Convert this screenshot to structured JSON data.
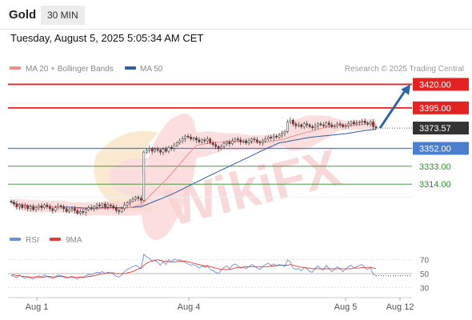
{
  "header": {
    "symbol": "Gold",
    "timeframe": "30 MIN",
    "datetime": "Tuesday, August 5, 2025 5:05:34 AM CET"
  },
  "legend": {
    "ma20": "MA 20 + Bollinger Bands",
    "ma50": "MA 50",
    "credit": "Research © 2025 Trading Central",
    "colors": {
      "ma20": "#f28b8b",
      "ma50": "#2e5f9e"
    }
  },
  "rsi_legend": {
    "rsi": "RSI",
    "ma9": "9MA",
    "colors": {
      "rsi": "#6d8fd6",
      "ma9": "#e53935"
    }
  },
  "watermark": {
    "text": "WikiFX",
    "icon": "wikifx-logo-icon"
  },
  "chart_data": {
    "type": "candlestick",
    "ylim": [
      3270,
      3428
    ],
    "x_labels": [
      "Aug 1",
      "Aug 4",
      "Aug 5",
      "Aug 12"
    ],
    "last_price": {
      "value": "3373.57",
      "color": "#333333"
    },
    "levels": [
      {
        "value": "3420.00",
        "num": 3420,
        "color": "#e32222",
        "style": "box"
      },
      {
        "value": "3395.00",
        "num": 3395,
        "color": "#e32222",
        "style": "box"
      },
      {
        "value": "3352.00",
        "num": 3352,
        "color": "#4a7fd0",
        "style": "box"
      },
      {
        "value": "3333.00",
        "num": 3333,
        "color": "#2e8b2e",
        "style": "text"
      },
      {
        "value": "3314.00",
        "num": 3314,
        "color": "#2e8b2e",
        "style": "text"
      }
    ],
    "forecast_arrow": {
      "from": 3373.57,
      "to": 3420,
      "color": "#2e64a8"
    },
    "closes": [
      3295,
      3293,
      3290,
      3292,
      3289,
      3291,
      3288,
      3290,
      3287,
      3289,
      3291,
      3289,
      3292,
      3290,
      3288,
      3286,
      3289,
      3291,
      3290,
      3288,
      3285,
      3287,
      3288,
      3286,
      3283,
      3285,
      3284,
      3287,
      3289,
      3288,
      3290,
      3292,
      3291,
      3293,
      3290,
      3292,
      3291,
      3289,
      3286,
      3285,
      3288,
      3292,
      3294,
      3296,
      3298,
      3300,
      3299,
      3297,
      3348,
      3350,
      3352,
      3349,
      3351,
      3350,
      3348,
      3351,
      3349,
      3353,
      3352,
      3355,
      3358,
      3360,
      3362,
      3365,
      3364,
      3362,
      3363,
      3361,
      3359,
      3361,
      3360,
      3362,
      3358,
      3356,
      3354,
      3352,
      3354,
      3357,
      3359,
      3357,
      3360,
      3362,
      3361,
      3359,
      3360,
      3358,
      3360,
      3362,
      3361,
      3359,
      3358,
      3360,
      3362,
      3364,
      3363,
      3365,
      3364,
      3366,
      3368,
      3370,
      3380,
      3382,
      3378,
      3376,
      3377,
      3375,
      3378,
      3377,
      3375,
      3374,
      3376,
      3378,
      3377,
      3376,
      3379,
      3377,
      3375,
      3376,
      3378,
      3377,
      3375,
      3376,
      3378,
      3380,
      3378,
      3379,
      3380,
      3381,
      3379,
      3378,
      3380,
      3375,
      3373.57
    ],
    "rsi": {
      "ylim": [
        20,
        80
      ],
      "ticks": [
        "70",
        "50",
        "30"
      ],
      "rsi_values": [
        47,
        46,
        44,
        48,
        45,
        43,
        46,
        44,
        42,
        45,
        47,
        45,
        48,
        46,
        44,
        43,
        46,
        48,
        47,
        45,
        43,
        45,
        46,
        44,
        42,
        45,
        44,
        47,
        49,
        48,
        50,
        52,
        51,
        53,
        50,
        52,
        51,
        49,
        46,
        45,
        48,
        53,
        56,
        58,
        60,
        62,
        60,
        57,
        78,
        74,
        72,
        68,
        70,
        66,
        62,
        67,
        63,
        70,
        67,
        71,
        69,
        70,
        68,
        66,
        64,
        62,
        63,
        61,
        58,
        61,
        59,
        62,
        56,
        54,
        52,
        50,
        55,
        59,
        61,
        57,
        62,
        64,
        61,
        58,
        60,
        57,
        60,
        63,
        61,
        58,
        56,
        60,
        63,
        65,
        62,
        64,
        61,
        63,
        62,
        60,
        70,
        67,
        58,
        56,
        57,
        54,
        59,
        57,
        53,
        52,
        58,
        61,
        57,
        55,
        62,
        57,
        53,
        56,
        60,
        57,
        53,
        56,
        60,
        62,
        58,
        60,
        62,
        63,
        58,
        56,
        59,
        49,
        47
      ],
      "ma_values": [
        48,
        48,
        47,
        47,
        46,
        46,
        45,
        45,
        45,
        45,
        45,
        45,
        45,
        46,
        46,
        45,
        45,
        46,
        46,
        46,
        45,
        45,
        45,
        45,
        45,
        45,
        45,
        45,
        46,
        46,
        47,
        48,
        49,
        50,
        50,
        51,
        51,
        51,
        50,
        50,
        50,
        50,
        51,
        52,
        53,
        55,
        57,
        58,
        62,
        65,
        67,
        68,
        69,
        70,
        69,
        68,
        68,
        67,
        67,
        67,
        67,
        68,
        68,
        68,
        67,
        66,
        65,
        64,
        63,
        62,
        61,
        61,
        60,
        59,
        58,
        57,
        56,
        56,
        56,
        56,
        57,
        58,
        59,
        59,
        59,
        60,
        60,
        60,
        60,
        60,
        60,
        60,
        60,
        60,
        61,
        61,
        62,
        62,
        62,
        62,
        62,
        63,
        62,
        61,
        60,
        59,
        59,
        58,
        58,
        57,
        57,
        57,
        57,
        57,
        57,
        57,
        57,
        57,
        57,
        57,
        57,
        57,
        57,
        57,
        58,
        58,
        58,
        59,
        59,
        59,
        59,
        58,
        57
      ]
    }
  }
}
